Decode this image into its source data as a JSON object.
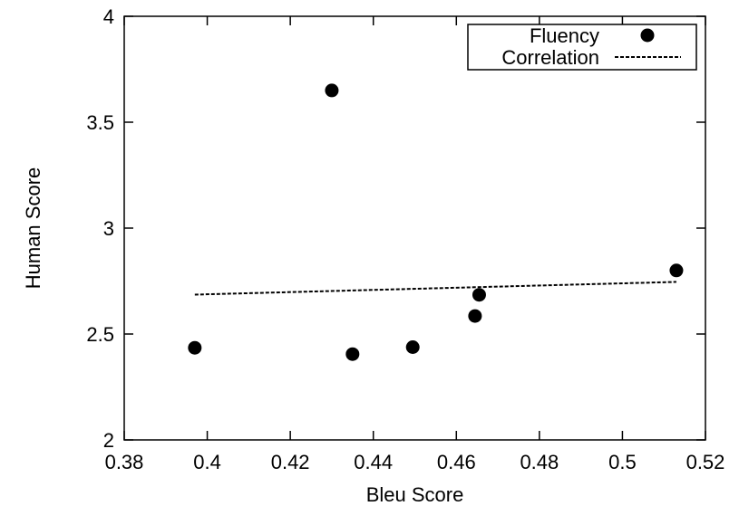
{
  "chart_data": {
    "type": "scatter",
    "xlabel": "Bleu Score",
    "ylabel": "Human Score",
    "xlim": [
      0.38,
      0.52
    ],
    "ylim": [
      2,
      4
    ],
    "xticks": [
      0.38,
      0.4,
      0.42,
      0.44,
      0.46,
      0.48,
      0.5,
      0.52
    ],
    "xtick_labels": [
      "0.38",
      "0.4",
      "0.42",
      "0.44",
      "0.46",
      "0.48",
      "0.5",
      "0.52"
    ],
    "yticks": [
      2,
      2.5,
      3,
      3.5,
      4
    ],
    "ytick_labels": [
      "2",
      "2.5",
      "3",
      "3.5",
      "4"
    ],
    "grid": false,
    "legend_position": "top-right",
    "series": [
      {
        "name": "Fluency",
        "kind": "points",
        "color": "#000000",
        "points": [
          {
            "x": 0.397,
            "y": 2.435
          },
          {
            "x": 0.43,
            "y": 3.65
          },
          {
            "x": 0.435,
            "y": 2.405
          },
          {
            "x": 0.4495,
            "y": 2.438
          },
          {
            "x": 0.4645,
            "y": 2.585
          },
          {
            "x": 0.4655,
            "y": 2.685
          },
          {
            "x": 0.513,
            "y": 2.8
          }
        ]
      },
      {
        "name": "Correlation",
        "kind": "dashed-line",
        "color": "#000000",
        "points": [
          {
            "x": 0.397,
            "y": 2.686
          },
          {
            "x": 0.513,
            "y": 2.746
          }
        ]
      }
    ]
  }
}
